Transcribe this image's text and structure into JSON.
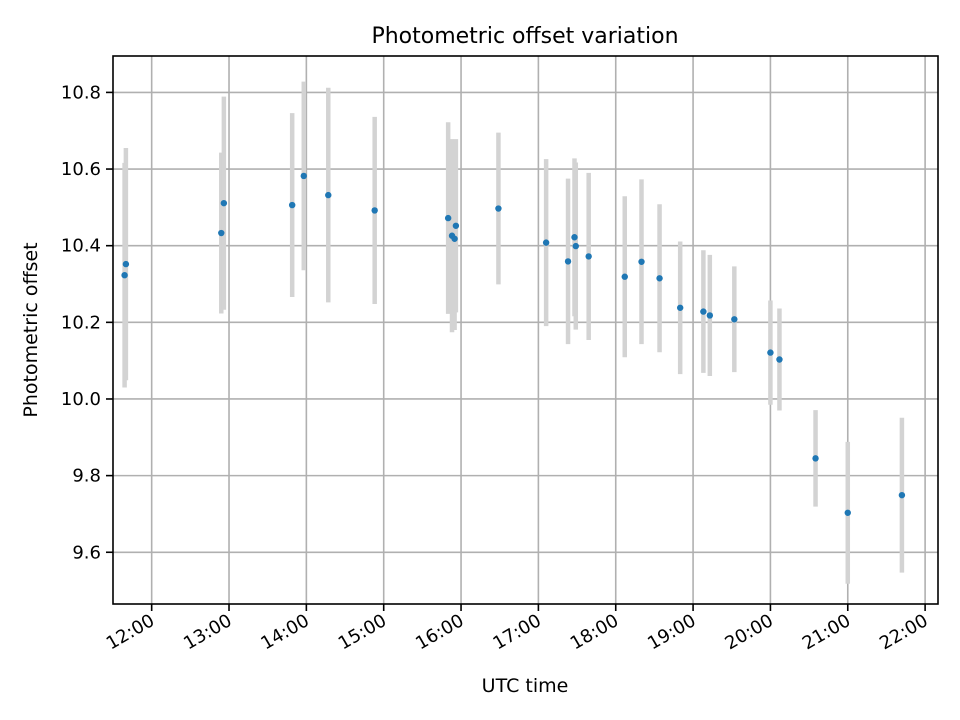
{
  "chart_data": {
    "type": "scatter",
    "title": "Photometric offset variation",
    "xlabel": "UTC time",
    "ylabel": "Photometric offset",
    "xlim": [
      "11:30",
      "22:10"
    ],
    "ylim": [
      9.465,
      10.895
    ],
    "grid": true,
    "x_ticks": [
      "12:00",
      "13:00",
      "14:00",
      "15:00",
      "16:00",
      "17:00",
      "18:00",
      "19:00",
      "20:00",
      "21:00",
      "22:00"
    ],
    "y_ticks": [
      9.6,
      9.8,
      10.0,
      10.2,
      10.4,
      10.6,
      10.8
    ],
    "y_tick_labels": [
      "9.6",
      "9.8",
      "10.0",
      "10.2",
      "10.4",
      "10.6",
      "10.8"
    ],
    "colors": {
      "points": "#1f77b4",
      "errorbars": "#d3d3d3",
      "grid": "#b0b0b0"
    },
    "points": [
      {
        "x": "11:40",
        "y": 10.352,
        "err": 0.303
      },
      {
        "x": "11:39",
        "y": 10.323,
        "err": 0.293
      },
      {
        "x": "12:54",
        "y": 10.433,
        "err": 0.21
      },
      {
        "x": "12:56",
        "y": 10.511,
        "err": 0.278
      },
      {
        "x": "13:49",
        "y": 10.506,
        "err": 0.24
      },
      {
        "x": "13:58",
        "y": 10.582,
        "err": 0.246
      },
      {
        "x": "14:17",
        "y": 10.532,
        "err": 0.28
      },
      {
        "x": "14:53",
        "y": 10.492,
        "err": 0.244
      },
      {
        "x": "15:50",
        "y": 10.472,
        "err": 0.25
      },
      {
        "x": "15:53",
        "y": 10.426,
        "err": 0.252
      },
      {
        "x": "15:55",
        "y": 10.418,
        "err": 0.238
      },
      {
        "x": "15:56",
        "y": 10.452,
        "err": 0.226
      },
      {
        "x": "16:29",
        "y": 10.497,
        "err": 0.198
      },
      {
        "x": "17:06",
        "y": 10.408,
        "err": 0.218
      },
      {
        "x": "17:23",
        "y": 10.359,
        "err": 0.216
      },
      {
        "x": "17:28",
        "y": 10.422,
        "err": 0.206
      },
      {
        "x": "17:29",
        "y": 10.399,
        "err": 0.218
      },
      {
        "x": "17:39",
        "y": 10.372,
        "err": 0.218
      },
      {
        "x": "18:07",
        "y": 10.319,
        "err": 0.21
      },
      {
        "x": "18:20",
        "y": 10.358,
        "err": 0.215
      },
      {
        "x": "18:34",
        "y": 10.315,
        "err": 0.193
      },
      {
        "x": "18:50",
        "y": 10.238,
        "err": 0.173
      },
      {
        "x": "19:08",
        "y": 10.228,
        "err": 0.16
      },
      {
        "x": "19:13",
        "y": 10.218,
        "err": 0.158
      },
      {
        "x": "19:32",
        "y": 10.208,
        "err": 0.138
      },
      {
        "x": "20:00",
        "y": 10.121,
        "err": 0.136
      },
      {
        "x": "20:07",
        "y": 10.103,
        "err": 0.133
      },
      {
        "x": "20:35",
        "y": 9.845,
        "err": 0.126
      },
      {
        "x": "21:00",
        "y": 9.703,
        "err": 0.185
      },
      {
        "x": "21:42",
        "y": 9.749,
        "err": 0.202
      }
    ]
  }
}
